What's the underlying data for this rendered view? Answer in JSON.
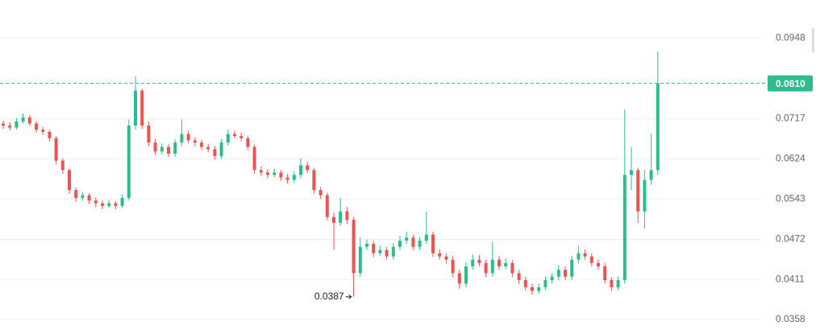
{
  "chart_data": {
    "type": "candlestick",
    "log": true,
    "grid": true,
    "up_color": "#2dbd8c",
    "down_color": "#ef5350",
    "ylim": [
      0.0345,
      0.1081
    ],
    "yticks": [
      0.0948,
      0.0717,
      0.0624,
      0.0543,
      0.0472,
      0.0411,
      0.0358
    ],
    "price_line": {
      "value": 0.081,
      "label": "0.0810"
    },
    "low_marker_index": 53,
    "open": [
      0.0705,
      0.07,
      0.0695,
      0.071,
      0.072,
      0.0705,
      0.069,
      0.0685,
      0.067,
      0.062,
      0.06,
      0.056,
      0.0545,
      0.055,
      0.054,
      0.0535,
      0.053,
      0.0535,
      0.053,
      0.0545,
      0.07,
      0.079,
      0.07,
      0.066,
      0.064,
      0.065,
      0.0635,
      0.066,
      0.068,
      0.0665,
      0.066,
      0.065,
      0.0645,
      0.063,
      0.066,
      0.068,
      0.0675,
      0.067,
      0.065,
      0.06,
      0.0595,
      0.059,
      0.0595,
      0.0585,
      0.058,
      0.059,
      0.061,
      0.06,
      0.056,
      0.055,
      0.051,
      0.05,
      0.052,
      0.0505,
      0.042,
      0.046,
      0.0465,
      0.045,
      0.0455,
      0.0445,
      0.046,
      0.047,
      0.0475,
      0.046,
      0.047,
      0.048,
      0.045,
      0.0445,
      0.044,
      0.042,
      0.0405,
      0.043,
      0.044,
      0.0435,
      0.042,
      0.044,
      0.043,
      0.0435,
      0.042,
      0.041,
      0.04,
      0.0395,
      0.04,
      0.041,
      0.0415,
      0.0425,
      0.0415,
      0.044,
      0.045,
      0.0445,
      0.0435,
      0.043,
      0.041,
      0.04,
      0.041,
      0.059,
      0.06,
      0.052,
      0.058,
      0.06
    ],
    "high": [
      0.0712,
      0.0708,
      0.0718,
      0.073,
      0.0726,
      0.071,
      0.0697,
      0.069,
      0.0675,
      0.0625,
      0.0603,
      0.0565,
      0.0556,
      0.0554,
      0.0546,
      0.054,
      0.0541,
      0.0539,
      0.0552,
      0.0715,
      0.083,
      0.0795,
      0.071,
      0.0668,
      0.0658,
      0.0656,
      0.0668,
      0.0715,
      0.0688,
      0.0672,
      0.0666,
      0.0657,
      0.0652,
      0.0668,
      0.069,
      0.0688,
      0.0683,
      0.0676,
      0.0656,
      0.0608,
      0.0602,
      0.0603,
      0.06,
      0.0592,
      0.0598,
      0.0625,
      0.0618,
      0.0605,
      0.0566,
      0.0555,
      0.0518,
      0.0545,
      0.0528,
      0.051,
      0.0475,
      0.0472,
      0.047,
      0.0462,
      0.046,
      0.0466,
      0.0478,
      0.0485,
      0.048,
      0.0476,
      0.052,
      0.0485,
      0.0456,
      0.045,
      0.0446,
      0.0425,
      0.0436,
      0.0448,
      0.0447,
      0.044,
      0.0468,
      0.0446,
      0.0442,
      0.044,
      0.0425,
      0.0415,
      0.0405,
      0.0405,
      0.0415,
      0.042,
      0.0432,
      0.043,
      0.0446,
      0.0462,
      0.0456,
      0.045,
      0.044,
      0.0435,
      0.0414,
      0.0415,
      0.074,
      0.065,
      0.0605,
      0.06,
      0.068,
      0.0905
    ],
    "low": [
      0.0692,
      0.0688,
      0.069,
      0.0705,
      0.07,
      0.0683,
      0.0678,
      0.0662,
      0.0612,
      0.0592,
      0.0553,
      0.0538,
      0.054,
      0.0534,
      0.0528,
      0.0524,
      0.0526,
      0.0524,
      0.0526,
      0.054,
      0.069,
      0.0692,
      0.0652,
      0.0632,
      0.0634,
      0.0628,
      0.0628,
      0.0652,
      0.0658,
      0.0652,
      0.0643,
      0.0638,
      0.0622,
      0.0624,
      0.0653,
      0.067,
      0.0663,
      0.0643,
      0.0592,
      0.0588,
      0.0583,
      0.0585,
      0.0578,
      0.0573,
      0.0574,
      0.0583,
      0.0594,
      0.0553,
      0.0543,
      0.0504,
      0.0455,
      0.0495,
      0.0498,
      0.0387,
      0.0415,
      0.0455,
      0.0444,
      0.0446,
      0.044,
      0.044,
      0.0455,
      0.0465,
      0.0455,
      0.0455,
      0.0465,
      0.0444,
      0.044,
      0.0434,
      0.0414,
      0.0398,
      0.04,
      0.0425,
      0.043,
      0.0414,
      0.0415,
      0.0425,
      0.0426,
      0.0414,
      0.0404,
      0.0395,
      0.039,
      0.0391,
      0.0396,
      0.0405,
      0.041,
      0.041,
      0.041,
      0.0435,
      0.044,
      0.043,
      0.0425,
      0.0405,
      0.0395,
      0.0396,
      0.0405,
      0.056,
      0.05,
      0.049,
      0.057,
      0.059
    ],
    "close": [
      0.07,
      0.0695,
      0.071,
      0.072,
      0.0705,
      0.069,
      0.0685,
      0.067,
      0.062,
      0.06,
      0.056,
      0.0545,
      0.055,
      0.054,
      0.0535,
      0.053,
      0.0535,
      0.053,
      0.0545,
      0.07,
      0.079,
      0.07,
      0.066,
      0.064,
      0.065,
      0.0635,
      0.066,
      0.068,
      0.0665,
      0.066,
      0.065,
      0.0645,
      0.063,
      0.066,
      0.068,
      0.0675,
      0.067,
      0.065,
      0.06,
      0.0595,
      0.059,
      0.0595,
      0.0585,
      0.058,
      0.059,
      0.061,
      0.06,
      0.056,
      0.055,
      0.051,
      0.05,
      0.052,
      0.0505,
      0.042,
      0.046,
      0.0465,
      0.045,
      0.0455,
      0.0445,
      0.046,
      0.047,
      0.0475,
      0.046,
      0.047,
      0.048,
      0.045,
      0.0445,
      0.044,
      0.042,
      0.0405,
      0.043,
      0.044,
      0.0435,
      0.042,
      0.044,
      0.043,
      0.0435,
      0.042,
      0.041,
      0.04,
      0.0395,
      0.04,
      0.041,
      0.0415,
      0.0425,
      0.0415,
      0.044,
      0.045,
      0.0445,
      0.0435,
      0.043,
      0.041,
      0.04,
      0.041,
      0.059,
      0.06,
      0.052,
      0.058,
      0.06,
      0.081
    ]
  }
}
